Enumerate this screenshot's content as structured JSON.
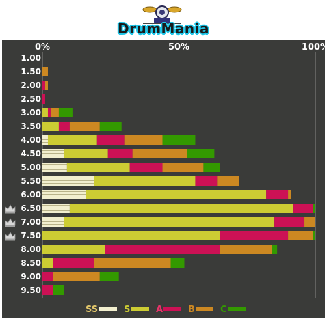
{
  "logo": {
    "text": "DrumMania",
    "icon": "drum-kit-icon"
  },
  "chart_data": {
    "type": "bar",
    "stacked": true,
    "orientation": "horizontal",
    "x_ticks": [
      "0%",
      "50%",
      "100%"
    ],
    "xlim": [
      0,
      100
    ],
    "categories": [
      "1.00",
      "1.50",
      "2.00",
      "2.50",
      "3.00",
      "3.50",
      "4.00",
      "4.50",
      "5.00",
      "5.50",
      "6.00",
      "6.50",
      "7.00",
      "7.50",
      "8.00",
      "8.50",
      "9.00",
      "9.50"
    ],
    "crowned_categories": [
      "6.50",
      "7.00",
      "7.50"
    ],
    "series": [
      {
        "name": "SS",
        "color": "#e8e4b8",
        "values": [
          0,
          0,
          0,
          0,
          0,
          0,
          2,
          8,
          9,
          19,
          16,
          10,
          8,
          0,
          0,
          0,
          0,
          0
        ]
      },
      {
        "name": "S",
        "color": "#cccc33",
        "values": [
          0,
          0,
          0,
          0,
          2,
          6,
          18,
          16,
          23,
          37,
          66,
          82,
          77,
          65,
          23,
          4,
          0,
          0
        ]
      },
      {
        "name": "A",
        "color": "#cc1155",
        "values": [
          0,
          0,
          1,
          1,
          1,
          4,
          10,
          9,
          12,
          8,
          8,
          7,
          11,
          25,
          42,
          15,
          4,
          4
        ]
      },
      {
        "name": "B",
        "color": "#cc8822",
        "values": [
          0,
          2,
          1,
          0,
          3,
          11,
          14,
          20,
          15,
          8,
          1,
          0,
          4,
          9,
          19,
          28,
          17,
          0
        ]
      },
      {
        "name": "C",
        "color": "#339900",
        "values": [
          0,
          0,
          0,
          0,
          5,
          8,
          12,
          10,
          6,
          0,
          0,
          1,
          0,
          1,
          2,
          5,
          7,
          4
        ]
      }
    ],
    "legend": {
      "position": "bottom",
      "labels": [
        "SS",
        "S",
        "A",
        "B",
        "C"
      ]
    },
    "grid": true
  }
}
